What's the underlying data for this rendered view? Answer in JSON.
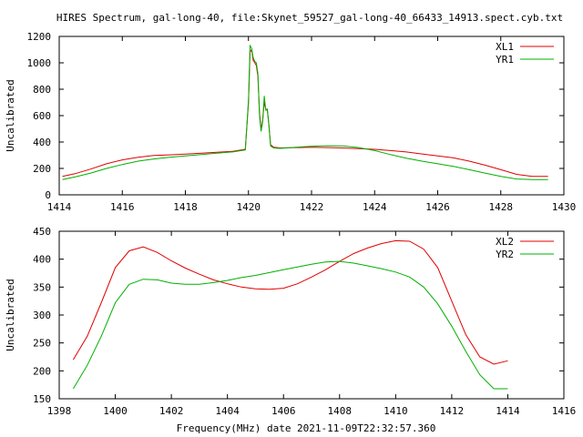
{
  "title": "HIRES Spectrum, gal-long-40, file:Skynet_59527_gal-long-40_66433_14913.spect.cyb.txt",
  "colors": {
    "red": "#e00000",
    "green": "#00b000"
  },
  "chart_data": [
    {
      "type": "line",
      "ylabel": "Uncalibrated",
      "xlabel": "",
      "xlim": [
        1414,
        1430
      ],
      "ylim": [
        0,
        1200
      ],
      "xticks": [
        1414,
        1416,
        1418,
        1420,
        1422,
        1424,
        1426,
        1428,
        1430
      ],
      "yticks": [
        0,
        200,
        400,
        600,
        800,
        1000,
        1200
      ],
      "legend": "top-right",
      "series": [
        {
          "name": "XL1",
          "color": "#e00000",
          "x": [
            1414.1,
            1414.5,
            1415,
            1415.5,
            1416,
            1416.5,
            1417,
            1417.5,
            1418,
            1418.5,
            1419,
            1419.5,
            1419.9,
            1420.0,
            1420.05,
            1420.1,
            1420.15,
            1420.2,
            1420.25,
            1420.3,
            1420.35,
            1420.4,
            1420.45,
            1420.5,
            1420.55,
            1420.6,
            1420.65,
            1420.7,
            1420.8,
            1421,
            1421.5,
            1422,
            1422.5,
            1423,
            1423.5,
            1424,
            1424.5,
            1425,
            1425.5,
            1426,
            1426.5,
            1427,
            1427.5,
            1428,
            1428.5,
            1429,
            1429.5
          ],
          "y": [
            140,
            160,
            195,
            235,
            265,
            285,
            298,
            303,
            308,
            315,
            322,
            330,
            345,
            700,
            1080,
            1100,
            1020,
            1000,
            980,
            900,
            620,
            500,
            560,
            700,
            650,
            640,
            520,
            380,
            360,
            355,
            358,
            360,
            358,
            355,
            350,
            345,
            335,
            325,
            310,
            295,
            280,
            255,
            225,
            190,
            155,
            140,
            140
          ]
        },
        {
          "name": "YR1",
          "color": "#00b000",
          "x": [
            1414.1,
            1414.5,
            1415,
            1415.5,
            1416,
            1416.5,
            1417,
            1417.5,
            1418,
            1418.5,
            1419,
            1419.5,
            1419.9,
            1420.0,
            1420.05,
            1420.1,
            1420.15,
            1420.2,
            1420.25,
            1420.3,
            1420.35,
            1420.4,
            1420.45,
            1420.5,
            1420.55,
            1420.6,
            1420.65,
            1420.7,
            1420.8,
            1421,
            1421.5,
            1422,
            1422.5,
            1423,
            1423.5,
            1424,
            1424.5,
            1425,
            1425.5,
            1426,
            1426.5,
            1427,
            1427.5,
            1428,
            1428.5,
            1429,
            1429.5
          ],
          "y": [
            115,
            135,
            165,
            200,
            230,
            255,
            272,
            285,
            295,
            305,
            315,
            325,
            340,
            720,
            1130,
            1110,
            1040,
            1010,
            1000,
            920,
            600,
            480,
            550,
            750,
            640,
            650,
            520,
            370,
            355,
            352,
            360,
            368,
            372,
            370,
            358,
            335,
            305,
            278,
            255,
            235,
            215,
            190,
            165,
            140,
            120,
            115,
            115
          ]
        }
      ]
    },
    {
      "type": "line",
      "ylabel": "Uncalibrated",
      "xlabel": "Frequency(MHz) date 2021-11-09T22:32:57.360",
      "xlim": [
        1398,
        1416
      ],
      "ylim": [
        150,
        450
      ],
      "xticks": [
        1398,
        1400,
        1402,
        1404,
        1406,
        1408,
        1410,
        1412,
        1414,
        1416
      ],
      "yticks": [
        150,
        200,
        250,
        300,
        350,
        400,
        450
      ],
      "legend": "top-right",
      "series": [
        {
          "name": "XL2",
          "color": "#e00000",
          "x": [
            1398.5,
            1399,
            1399.5,
            1400,
            1400.5,
            1401,
            1401.5,
            1402,
            1402.5,
            1403,
            1403.5,
            1404,
            1404.5,
            1405,
            1405.5,
            1406,
            1406.5,
            1407,
            1407.5,
            1408,
            1408.5,
            1409,
            1409.5,
            1410,
            1410.5,
            1411,
            1411.5,
            1412,
            1412.5,
            1413,
            1413.5,
            1414
          ],
          "y": [
            220,
            262,
            322,
            385,
            415,
            422,
            412,
            397,
            384,
            373,
            363,
            356,
            350,
            347,
            346,
            348,
            356,
            368,
            381,
            396,
            410,
            420,
            428,
            433,
            432,
            418,
            385,
            325,
            265,
            225,
            212,
            218
          ]
        },
        {
          "name": "YR2",
          "color": "#00b000",
          "x": [
            1398.5,
            1399,
            1399.5,
            1400,
            1400.5,
            1401,
            1401.5,
            1402,
            1402.5,
            1403,
            1403.5,
            1404,
            1404.5,
            1405,
            1405.5,
            1406,
            1406.5,
            1407,
            1407.5,
            1408,
            1408.5,
            1409,
            1409.5,
            1410,
            1410.5,
            1411,
            1411.5,
            1412,
            1412.5,
            1413,
            1413.5,
            1414
          ],
          "y": [
            168,
            210,
            262,
            322,
            355,
            364,
            363,
            357,
            355,
            355,
            358,
            362,
            367,
            371,
            376,
            381,
            386,
            391,
            395,
            396,
            393,
            388,
            383,
            377,
            368,
            350,
            320,
            280,
            235,
            193,
            168,
            168
          ]
        }
      ]
    }
  ]
}
